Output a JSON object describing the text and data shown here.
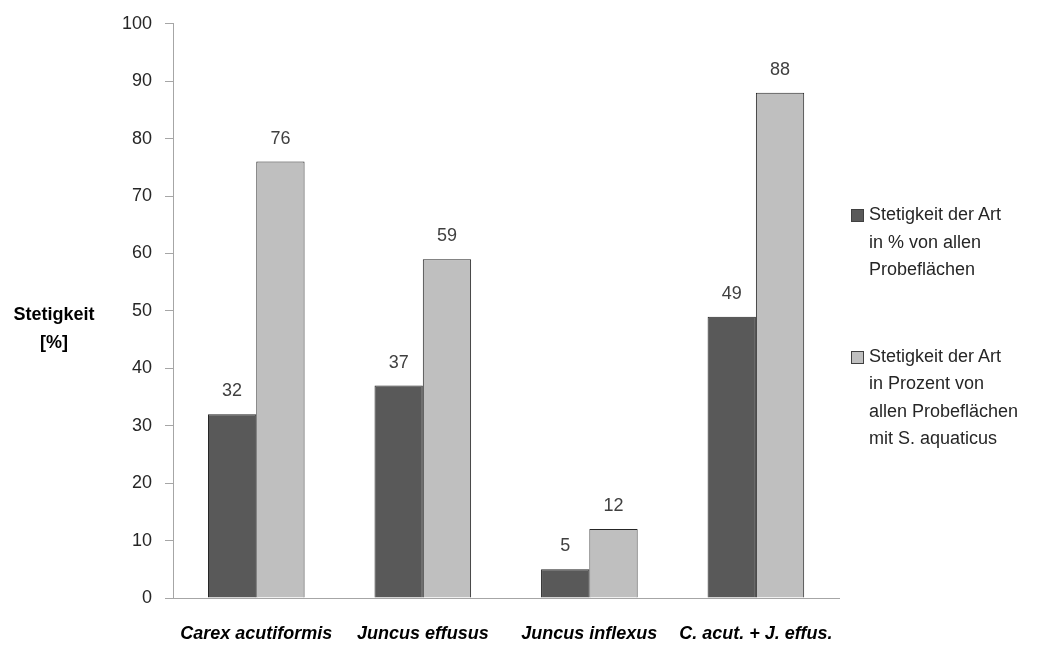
{
  "chart_data": {
    "type": "bar",
    "ylabel": "Stetigkeit [%]",
    "categories": [
      "Carex acutiformis",
      "Juncus effusus",
      "Juncus inflexus",
      "C. acut. + J. effus."
    ],
    "series": [
      {
        "name": "Stetigkeit der Art in % von allen Probeflächen",
        "color": "#595959",
        "values": [
          32,
          37,
          5,
          49
        ]
      },
      {
        "name": "Stetigkeit der Art in Prozent von allen Probeflächen mit S. aquaticus",
        "color": "#bfbfbf",
        "values": [
          76,
          59,
          12,
          88
        ]
      }
    ],
    "ylim": [
      0,
      100
    ],
    "yticks": [
      0,
      10,
      20,
      30,
      40,
      50,
      60,
      70,
      80,
      90,
      100
    ],
    "data_labels": true,
    "legend": "right"
  }
}
